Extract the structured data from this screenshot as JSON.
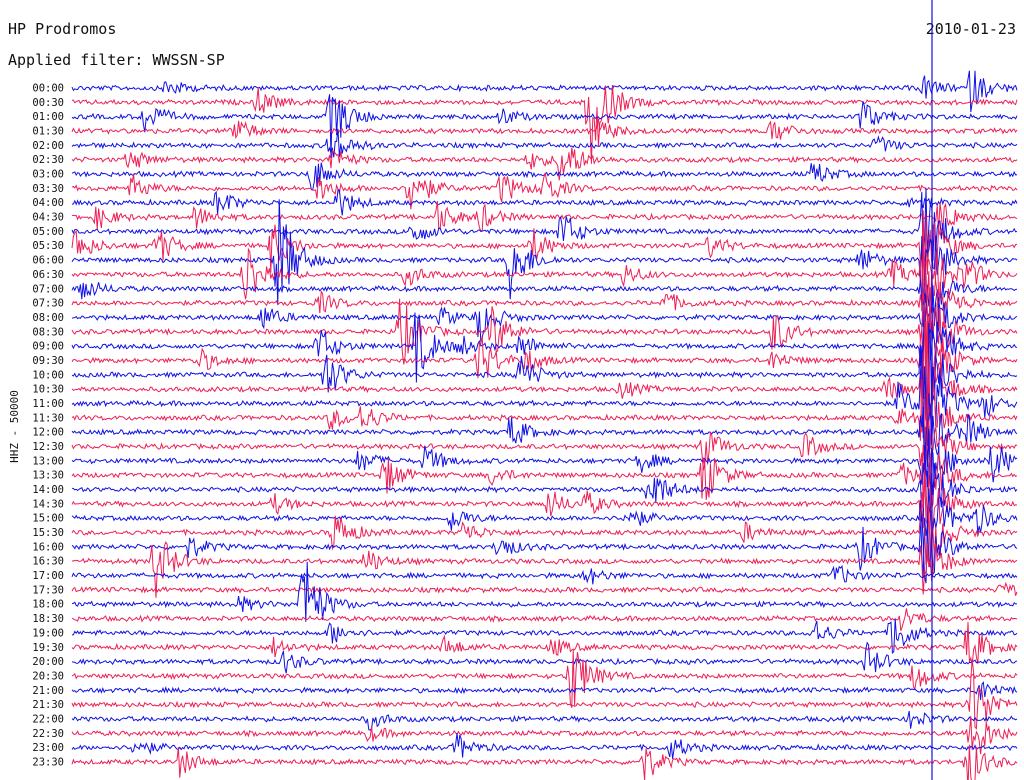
{
  "header": {
    "station": "HP Prodromos",
    "date": "2010-01-23",
    "filter": "Applied filter: WWSSN-SP"
  },
  "chart_data": {
    "type": "line",
    "title": "HP Prodromos",
    "subtitle": "Applied filter: WWSSN-SP",
    "ylabel": "HHZ - 50000",
    "xlabel": "",
    "row_labels": [
      "00:00",
      "00:30",
      "01:00",
      "01:30",
      "02:00",
      "02:30",
      "03:00",
      "03:30",
      "04:00",
      "04:30",
      "05:00",
      "05:30",
      "06:00",
      "06:30",
      "07:00",
      "07:30",
      "08:00",
      "08:30",
      "09:00",
      "09:30",
      "10:00",
      "10:30",
      "11:00",
      "11:30",
      "12:00",
      "12:30",
      "13:00",
      "13:30",
      "14:00",
      "14:30",
      "15:00",
      "15:30",
      "16:00",
      "16:30",
      "17:00",
      "17:30",
      "18:00",
      "18:30",
      "19:00",
      "19:30",
      "20:00",
      "20:30",
      "21:00",
      "21:30",
      "22:00",
      "22:30",
      "23:00",
      "23:30"
    ],
    "colors": [
      "#1010e6",
      "#ee1f55"
    ],
    "grid": false,
    "events": [
      {
        "row": 0,
        "minute": 3.0,
        "amp": 10
      },
      {
        "row": 0,
        "minute": 27.0,
        "amp": 12
      },
      {
        "row": 0,
        "minute": 28.5,
        "amp": 22
      },
      {
        "row": 1,
        "minute": 5.9,
        "amp": 14
      },
      {
        "row": 1,
        "minute": 16.4,
        "amp": 80
      },
      {
        "row": 2,
        "minute": 2.3,
        "amp": 18
      },
      {
        "row": 2,
        "minute": 8.2,
        "amp": 40
      },
      {
        "row": 2,
        "minute": 13.6,
        "amp": 9
      },
      {
        "row": 2,
        "minute": 25.0,
        "amp": 20
      },
      {
        "row": 3,
        "minute": 5.1,
        "amp": 16
      },
      {
        "row": 3,
        "minute": 16.7,
        "amp": 12
      },
      {
        "row": 3,
        "minute": 22.2,
        "amp": 14
      },
      {
        "row": 4,
        "minute": 8.2,
        "amp": 25
      },
      {
        "row": 4,
        "minute": 25.5,
        "amp": 10
      },
      {
        "row": 5,
        "minute": 1.8,
        "amp": 12
      },
      {
        "row": 5,
        "minute": 8.2,
        "amp": 14
      },
      {
        "row": 5,
        "minute": 14.5,
        "amp": 10
      },
      {
        "row": 5,
        "minute": 15.5,
        "amp": 30
      },
      {
        "row": 6,
        "minute": 7.6,
        "amp": 20
      },
      {
        "row": 6,
        "minute": 23.5,
        "amp": 14
      },
      {
        "row": 7,
        "minute": 1.9,
        "amp": 14
      },
      {
        "row": 7,
        "minute": 7.8,
        "amp": 14
      },
      {
        "row": 7,
        "minute": 10.7,
        "amp": 30
      },
      {
        "row": 7,
        "minute": 13.6,
        "amp": 18
      },
      {
        "row": 7,
        "minute": 14.9,
        "amp": 20
      },
      {
        "row": 8,
        "minute": 4.6,
        "amp": 15
      },
      {
        "row": 8,
        "minute": 8.4,
        "amp": 16
      },
      {
        "row": 8,
        "minute": 26.6,
        "amp": 10
      },
      {
        "row": 9,
        "minute": 0.8,
        "amp": 12
      },
      {
        "row": 9,
        "minute": 3.9,
        "amp": 12
      },
      {
        "row": 9,
        "minute": 11.6,
        "amp": 16
      },
      {
        "row": 9,
        "minute": 12.9,
        "amp": 15
      },
      {
        "row": 9,
        "minute": 27.5,
        "amp": 22
      },
      {
        "row": 10,
        "minute": 10.8,
        "amp": 14
      },
      {
        "row": 10,
        "minute": 15.5,
        "amp": 24
      },
      {
        "row": 10,
        "minute": 27.0,
        "amp": 60
      },
      {
        "row": 11,
        "minute": 0.1,
        "amp": 18
      },
      {
        "row": 11,
        "minute": 2.7,
        "amp": 20
      },
      {
        "row": 11,
        "minute": 6.3,
        "amp": 28
      },
      {
        "row": 11,
        "minute": 14.6,
        "amp": 18
      },
      {
        "row": 11,
        "minute": 20.2,
        "amp": 12
      },
      {
        "row": 11,
        "minute": 27.0,
        "amp": 60
      },
      {
        "row": 12,
        "minute": 6.5,
        "amp": 70
      },
      {
        "row": 12,
        "minute": 13.9,
        "amp": 40
      },
      {
        "row": 12,
        "minute": 25.0,
        "amp": 14
      },
      {
        "row": 12,
        "minute": 27.0,
        "amp": 60
      },
      {
        "row": 13,
        "minute": 5.5,
        "amp": 40
      },
      {
        "row": 13,
        "minute": 10.6,
        "amp": 12
      },
      {
        "row": 13,
        "minute": 17.5,
        "amp": 12
      },
      {
        "row": 13,
        "minute": 26.0,
        "amp": 14
      },
      {
        "row": 13,
        "minute": 28.3,
        "amp": 16
      },
      {
        "row": 13,
        "minute": 27.0,
        "amp": 60
      },
      {
        "row": 14,
        "minute": 0.3,
        "amp": 14
      },
      {
        "row": 14,
        "minute": 27.0,
        "amp": 60
      },
      {
        "row": 15,
        "minute": 7.8,
        "amp": 12
      },
      {
        "row": 15,
        "minute": 18.8,
        "amp": 12
      },
      {
        "row": 15,
        "minute": 27.4,
        "amp": 14
      },
      {
        "row": 15,
        "minute": 27.0,
        "amp": 60
      },
      {
        "row": 16,
        "minute": 6.0,
        "amp": 14
      },
      {
        "row": 16,
        "minute": 11.7,
        "amp": 10
      },
      {
        "row": 16,
        "minute": 12.9,
        "amp": 25
      },
      {
        "row": 16,
        "minute": 27.0,
        "amp": 60
      },
      {
        "row": 17,
        "minute": 10.4,
        "amp": 40
      },
      {
        "row": 17,
        "minute": 13.3,
        "amp": 30
      },
      {
        "row": 17,
        "minute": 22.2,
        "amp": 25
      },
      {
        "row": 17,
        "minute": 27.0,
        "amp": 80
      },
      {
        "row": 18,
        "minute": 7.8,
        "amp": 22
      },
      {
        "row": 18,
        "minute": 10.9,
        "amp": 38
      },
      {
        "row": 18,
        "minute": 12.3,
        "amp": 10
      },
      {
        "row": 18,
        "minute": 14.2,
        "amp": 14
      },
      {
        "row": 18,
        "minute": 27.0,
        "amp": 80
      },
      {
        "row": 19,
        "minute": 4.0,
        "amp": 14
      },
      {
        "row": 19,
        "minute": 12.9,
        "amp": 30
      },
      {
        "row": 19,
        "minute": 14.4,
        "amp": 12
      },
      {
        "row": 19,
        "minute": 22.2,
        "amp": 10
      },
      {
        "row": 19,
        "minute": 27.0,
        "amp": 80
      },
      {
        "row": 20,
        "minute": 8.0,
        "amp": 30
      },
      {
        "row": 20,
        "minute": 14.2,
        "amp": 22
      },
      {
        "row": 20,
        "minute": 27.0,
        "amp": 80
      },
      {
        "row": 21,
        "minute": 17.4,
        "amp": 10
      },
      {
        "row": 21,
        "minute": 25.8,
        "amp": 14
      },
      {
        "row": 21,
        "minute": 27.0,
        "amp": 80
      },
      {
        "row": 22,
        "minute": 26.2,
        "amp": 20
      },
      {
        "row": 22,
        "minute": 28.9,
        "amp": 14
      },
      {
        "row": 22,
        "minute": 27.0,
        "amp": 80
      },
      {
        "row": 23,
        "minute": 8.2,
        "amp": 12
      },
      {
        "row": 23,
        "minute": 9.2,
        "amp": 16
      },
      {
        "row": 23,
        "minute": 26.2,
        "amp": 10
      },
      {
        "row": 23,
        "minute": 27.0,
        "amp": 60
      },
      {
        "row": 24,
        "minute": 13.9,
        "amp": 18
      },
      {
        "row": 24,
        "minute": 28.4,
        "amp": 14
      },
      {
        "row": 24,
        "minute": 27.0,
        "amp": 60
      },
      {
        "row": 25,
        "minute": 20.0,
        "amp": 24
      },
      {
        "row": 25,
        "minute": 23.2,
        "amp": 14
      },
      {
        "row": 25,
        "minute": 27.0,
        "amp": 60
      },
      {
        "row": 26,
        "minute": 9.1,
        "amp": 12
      },
      {
        "row": 26,
        "minute": 11.2,
        "amp": 16
      },
      {
        "row": 26,
        "minute": 18.0,
        "amp": 12
      },
      {
        "row": 26,
        "minute": 29.2,
        "amp": 24
      },
      {
        "row": 26,
        "minute": 27.0,
        "amp": 60
      },
      {
        "row": 27,
        "minute": 9.9,
        "amp": 22
      },
      {
        "row": 27,
        "minute": 13.3,
        "amp": 10
      },
      {
        "row": 27,
        "minute": 20.0,
        "amp": 34
      },
      {
        "row": 27,
        "minute": 26.3,
        "amp": 12
      },
      {
        "row": 27,
        "minute": 27.0,
        "amp": 60
      },
      {
        "row": 28,
        "minute": 18.3,
        "amp": 28
      },
      {
        "row": 28,
        "minute": 27.0,
        "amp": 60
      },
      {
        "row": 29,
        "minute": 15.1,
        "amp": 16
      },
      {
        "row": 29,
        "minute": 16.3,
        "amp": 12
      },
      {
        "row": 29,
        "minute": 6.4,
        "amp": 10
      },
      {
        "row": 29,
        "minute": 27.0,
        "amp": 60
      },
      {
        "row": 30,
        "minute": 12.0,
        "amp": 14
      },
      {
        "row": 30,
        "minute": 17.6,
        "amp": 14
      },
      {
        "row": 30,
        "minute": 28.7,
        "amp": 16
      },
      {
        "row": 30,
        "minute": 27.0,
        "amp": 60
      },
      {
        "row": 31,
        "minute": 8.3,
        "amp": 24
      },
      {
        "row": 31,
        "minute": 12.4,
        "amp": 12
      },
      {
        "row": 31,
        "minute": 21.3,
        "amp": 10
      },
      {
        "row": 31,
        "minute": 27.0,
        "amp": 60
      },
      {
        "row": 32,
        "minute": 3.7,
        "amp": 12
      },
      {
        "row": 32,
        "minute": 13.5,
        "amp": 14
      },
      {
        "row": 32,
        "minute": 25.0,
        "amp": 22
      },
      {
        "row": 32,
        "minute": 27.0,
        "amp": 50
      },
      {
        "row": 33,
        "minute": 2.6,
        "amp": 40
      },
      {
        "row": 33,
        "minute": 9.3,
        "amp": 14
      },
      {
        "row": 33,
        "minute": 27.0,
        "amp": 40
      },
      {
        "row": 34,
        "minute": 16.3,
        "amp": 10
      },
      {
        "row": 34,
        "minute": 24.2,
        "amp": 12
      },
      {
        "row": 35,
        "minute": 29.5,
        "amp": 10
      },
      {
        "row": 36,
        "minute": 7.3,
        "amp": 60
      },
      {
        "row": 36,
        "minute": 5.3,
        "amp": 8
      },
      {
        "row": 37,
        "minute": 26.3,
        "amp": 14
      },
      {
        "row": 38,
        "minute": 23.5,
        "amp": 16
      },
      {
        "row": 38,
        "minute": 26.0,
        "amp": 30
      },
      {
        "row": 38,
        "minute": 8.2,
        "amp": 12
      },
      {
        "row": 39,
        "minute": 6.4,
        "amp": 10
      },
      {
        "row": 39,
        "minute": 11.8,
        "amp": 10
      },
      {
        "row": 39,
        "minute": 15.2,
        "amp": 10
      },
      {
        "row": 39,
        "minute": 28.4,
        "amp": 30
      },
      {
        "row": 40,
        "minute": 6.7,
        "amp": 12
      },
      {
        "row": 40,
        "minute": 25.2,
        "amp": 18
      },
      {
        "row": 41,
        "minute": 15.8,
        "amp": 45
      },
      {
        "row": 41,
        "minute": 26.7,
        "amp": 16
      },
      {
        "row": 42,
        "minute": 28.7,
        "amp": 14
      },
      {
        "row": 43,
        "minute": 28.5,
        "amp": 50
      },
      {
        "row": 44,
        "minute": 9.4,
        "amp": 10
      },
      {
        "row": 44,
        "minute": 26.6,
        "amp": 10
      },
      {
        "row": 45,
        "minute": 28.5,
        "amp": 40
      },
      {
        "row": 45,
        "minute": 9.4,
        "amp": 8
      },
      {
        "row": 46,
        "minute": 2.0,
        "amp": 10
      },
      {
        "row": 46,
        "minute": 12.2,
        "amp": 14
      },
      {
        "row": 46,
        "minute": 19.0,
        "amp": 12
      },
      {
        "row": 47,
        "minute": 3.4,
        "amp": 16
      },
      {
        "row": 47,
        "minute": 18.1,
        "amp": 22
      },
      {
        "row": 47,
        "minute": 28.4,
        "amp": 30
      }
    ]
  }
}
